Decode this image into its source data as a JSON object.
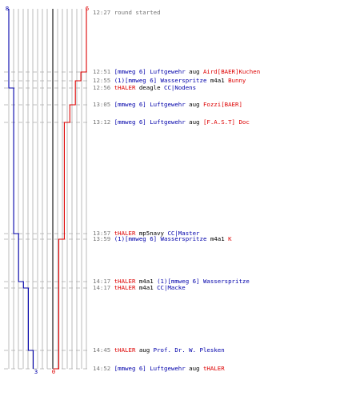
{
  "chart_data": {
    "type": "line",
    "title": "",
    "teams": [
      {
        "name": "blue",
        "color": "#0000aa",
        "start_count": "8",
        "end_count": "3"
      },
      {
        "name": "red",
        "color": "#dd0000",
        "start_count": "6",
        "end_count": "0"
      }
    ],
    "colors": {
      "time": "#777777",
      "neutral": "#000000",
      "grid": "#bbbbbb",
      "divider": "#777777",
      "dash": "#aaaaaa"
    },
    "events": [
      {
        "time": "12:27",
        "parts": [
          {
            "text": "round started",
            "team": "time"
          }
        ]
      },
      {
        "time": "12:51",
        "parts": [
          {
            "text": "[mmweg 6] Luftgewehr",
            "team": "blue"
          },
          {
            "text": " aug ",
            "team": "neutral"
          },
          {
            "text": "Aird[BAER]Kuchen",
            "team": "red"
          }
        ]
      },
      {
        "time": "12:55",
        "parts": [
          {
            "text": "(1)[mmweg 6] Wasserspritze",
            "team": "blue"
          },
          {
            "text": " m4a1 ",
            "team": "neutral"
          },
          {
            "text": "Bunny",
            "team": "red"
          }
        ]
      },
      {
        "time": "12:56",
        "parts": [
          {
            "text": "tHALER",
            "team": "red"
          },
          {
            "text": " deagle ",
            "team": "neutral"
          },
          {
            "text": "CC|Nodens",
            "team": "blue"
          }
        ]
      },
      {
        "time": "13:05",
        "parts": [
          {
            "text": "[mmweg 6] Luftgewehr",
            "team": "blue"
          },
          {
            "text": " aug ",
            "team": "neutral"
          },
          {
            "text": "Fozzi[BAER]",
            "team": "red"
          }
        ]
      },
      {
        "time": "13:12",
        "parts": [
          {
            "text": "[mmweg 6] Luftgewehr",
            "team": "blue"
          },
          {
            "text": " aug ",
            "team": "neutral"
          },
          {
            "text": "[F.A.S.T] Doc",
            "team": "red"
          }
        ]
      },
      {
        "time": "13:57",
        "parts": [
          {
            "text": "tHALER",
            "team": "red"
          },
          {
            "text": " mp5navy ",
            "team": "neutral"
          },
          {
            "text": "CC|Master",
            "team": "blue"
          }
        ]
      },
      {
        "time": "13:59",
        "parts": [
          {
            "text": "(1)[mmweg 6] Wasserspritze",
            "team": "blue"
          },
          {
            "text": " m4a1 ",
            "team": "neutral"
          },
          {
            "text": "K",
            "team": "red"
          }
        ]
      },
      {
        "time": "14:17",
        "parts": [
          {
            "text": "tHALER",
            "team": "red"
          },
          {
            "text": " m4a1 ",
            "team": "neutral"
          },
          {
            "text": "(1)[mmweg 6] Wasserspritze",
            "team": "blue"
          }
        ]
      },
      {
        "time": "14:17",
        "parts": [
          {
            "text": "tHALER",
            "team": "red"
          },
          {
            "text": " m4a1 ",
            "team": "neutral"
          },
          {
            "text": "CC|Macke",
            "team": "blue"
          }
        ]
      },
      {
        "time": "14:45",
        "parts": [
          {
            "text": "tHALER",
            "team": "red"
          },
          {
            "text": " aug ",
            "team": "neutral"
          },
          {
            "text": "Prof. Dr. W. Plesken",
            "team": "blue"
          }
        ]
      },
      {
        "time": "14:52",
        "parts": [
          {
            "text": "[mmweg 6] Luftgewehr",
            "team": "blue"
          },
          {
            "text": " aug ",
            "team": "neutral"
          },
          {
            "text": "tHALER",
            "team": "red"
          }
        ]
      }
    ],
    "series": [
      {
        "team": "blue",
        "x": [
          "12:27",
          "12:56",
          "13:57",
          "14:17",
          "14:17",
          "14:45"
        ],
        "y": [
          8,
          7,
          6,
          5,
          4,
          3
        ]
      },
      {
        "team": "red",
        "x": [
          "12:27",
          "12:51",
          "12:55",
          "13:05",
          "13:12",
          "13:59",
          "14:52"
        ],
        "y": [
          6,
          5,
          4,
          3,
          2,
          1,
          0
        ]
      }
    ]
  }
}
